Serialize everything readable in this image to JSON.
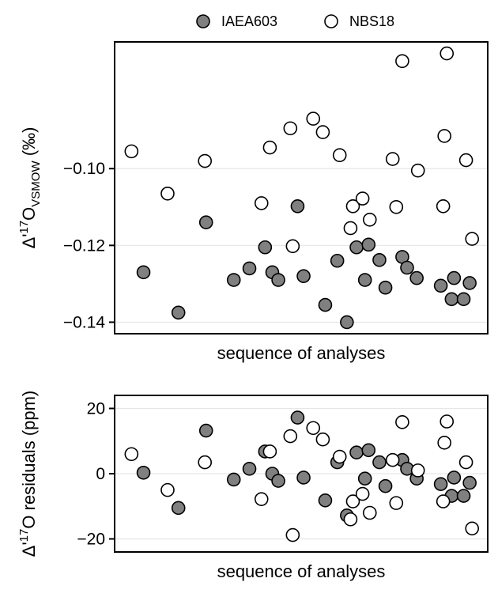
{
  "legend": [
    {
      "label": "IAEA603",
      "marker": "filled",
      "color": "#808080"
    },
    {
      "label": "NBS18",
      "marker": "open",
      "color": "#ffffff"
    }
  ],
  "colors": {
    "filled": "#808080",
    "open": "#ffffff",
    "edge": "#000000",
    "grid": "#e6e6e6"
  },
  "chart_data": [
    {
      "type": "scatter",
      "xlabel": "sequence of analyses",
      "ylabel": {
        "delta_prefix": "Δ'",
        "sup": "17",
        "base": "O",
        "sub": "VSMOW",
        "unit": "(‰)"
      },
      "ylim": [
        -0.143,
        -0.067
      ],
      "yticks": [
        -0.1,
        -0.12,
        -0.14
      ],
      "ytick_labels": [
        "−0.10",
        "−0.12",
        "−0.14"
      ],
      "xlim": [
        0,
        31
      ],
      "grid": "horizontal",
      "series": [
        {
          "name": "IAEA603",
          "marker": "filled",
          "points": [
            [
              2.4,
              -0.127
            ],
            [
              5.3,
              -0.1375
            ],
            [
              7.6,
              -0.114
            ],
            [
              9.9,
              -0.129
            ],
            [
              11.2,
              -0.126
            ],
            [
              12.5,
              -0.1205
            ],
            [
              13.1,
              -0.127
            ],
            [
              13.6,
              -0.129
            ],
            [
              15.2,
              -0.1098
            ],
            [
              15.7,
              -0.128
            ],
            [
              17.5,
              -0.1355
            ],
            [
              18.5,
              -0.124
            ],
            [
              19.3,
              -0.14
            ],
            [
              20.1,
              -0.1205
            ],
            [
              20.8,
              -0.129
            ],
            [
              21.1,
              -0.1198
            ],
            [
              22.0,
              -0.1238
            ],
            [
              22.5,
              -0.131
            ],
            [
              23.9,
              -0.123
            ],
            [
              24.3,
              -0.1258
            ],
            [
              25.1,
              -0.1285
            ],
            [
              27.1,
              -0.1305
            ],
            [
              28.0,
              -0.134
            ],
            [
              28.2,
              -0.1285
            ],
            [
              29.0,
              -0.134
            ],
            [
              29.5,
              -0.1298
            ]
          ]
        },
        {
          "name": "NBS18",
          "marker": "open",
          "points": [
            [
              1.4,
              -0.0955
            ],
            [
              4.4,
              -0.1065
            ],
            [
              7.5,
              -0.098
            ],
            [
              12.2,
              -0.109
            ],
            [
              12.9,
              -0.0945
            ],
            [
              14.6,
              -0.0895
            ],
            [
              14.8,
              -0.1202
            ],
            [
              16.5,
              -0.087
            ],
            [
              17.3,
              -0.0905
            ],
            [
              18.7,
              -0.0965
            ],
            [
              19.6,
              -0.1155
            ],
            [
              19.8,
              -0.1098
            ],
            [
              20.6,
              -0.1078
            ],
            [
              21.2,
              -0.1133
            ],
            [
              23.1,
              -0.0975
            ],
            [
              23.4,
              -0.11
            ],
            [
              23.9,
              -0.072
            ],
            [
              25.2,
              -0.1005
            ],
            [
              27.3,
              -0.1098
            ],
            [
              27.4,
              -0.0915
            ],
            [
              27.6,
              -0.07
            ],
            [
              29.2,
              -0.0978
            ],
            [
              29.7,
              -0.1183
            ]
          ]
        }
      ]
    },
    {
      "type": "scatter",
      "xlabel": "sequence of analyses",
      "ylabel": {
        "delta_prefix": "Δ'",
        "sup": "17",
        "base": "O",
        "sub": "",
        "unit": "residuals (ppm)"
      },
      "ylim": [
        -24,
        24
      ],
      "yticks": [
        20,
        0,
        -20
      ],
      "ytick_labels": [
        "20",
        "0",
        "−20"
      ],
      "xlim": [
        0,
        31
      ],
      "grid": "horizontal",
      "series": [
        {
          "name": "IAEA603",
          "marker": "filled",
          "points": [
            [
              2.4,
              0.3
            ],
            [
              5.3,
              -10.5
            ],
            [
              7.6,
              13.2
            ],
            [
              9.9,
              -1.8
            ],
            [
              11.2,
              1.5
            ],
            [
              12.5,
              6.8
            ],
            [
              13.1,
              0.0
            ],
            [
              13.6,
              -2.2
            ],
            [
              15.2,
              17.2
            ],
            [
              15.7,
              -1.2
            ],
            [
              17.5,
              -8.2
            ],
            [
              18.5,
              3.5
            ],
            [
              19.3,
              -12.8
            ],
            [
              20.1,
              6.5
            ],
            [
              20.8,
              -1.5
            ],
            [
              21.1,
              7.2
            ],
            [
              22.0,
              3.5
            ],
            [
              22.5,
              -3.8
            ],
            [
              23.9,
              4.2
            ],
            [
              24.3,
              1.5
            ],
            [
              25.1,
              -1.5
            ],
            [
              27.1,
              -3.2
            ],
            [
              28.0,
              -6.8
            ],
            [
              28.2,
              -1.2
            ],
            [
              29.0,
              -6.8
            ],
            [
              29.5,
              -2.8
            ]
          ]
        },
        {
          "name": "NBS18",
          "marker": "open",
          "points": [
            [
              1.4,
              6.0
            ],
            [
              4.4,
              -5.0
            ],
            [
              7.5,
              3.5
            ],
            [
              12.2,
              -7.8
            ],
            [
              12.9,
              6.8
            ],
            [
              14.6,
              11.5
            ],
            [
              14.8,
              -18.8
            ],
            [
              16.5,
              14.0
            ],
            [
              17.3,
              10.5
            ],
            [
              18.7,
              5.2
            ],
            [
              19.6,
              -14.0
            ],
            [
              19.8,
              -8.5
            ],
            [
              20.6,
              -6.2
            ],
            [
              21.2,
              -12.0
            ],
            [
              23.1,
              4.2
            ],
            [
              23.4,
              -9.0
            ],
            [
              23.9,
              15.8
            ],
            [
              25.2,
              1.0
            ],
            [
              27.3,
              -8.5
            ],
            [
              27.4,
              9.5
            ],
            [
              27.6,
              16.0
            ],
            [
              29.2,
              3.5
            ],
            [
              29.7,
              -16.8
            ]
          ]
        }
      ]
    }
  ]
}
